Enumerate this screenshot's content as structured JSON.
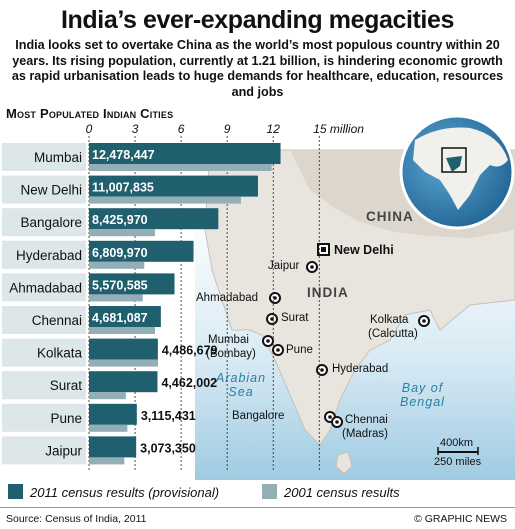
{
  "title": "India’s ever-expanding megacities",
  "subtitle": "India looks set to overtake China as the world’s most populous country within 20 years. Its rising population, currently at 1.21 billion, is hindering economic growth as rapid urbanisation leads to huge demands for healthcare, education, resources and jobs",
  "chart_data": {
    "type": "bar",
    "orientation": "horizontal",
    "title": "Most Populated Indian Cities",
    "xlim": [
      0,
      15
    ],
    "x_ticks": [
      "0",
      "3",
      "6",
      "9",
      "12",
      "15 million"
    ],
    "categories": [
      "Mumbai",
      "New Delhi",
      "Bangalore",
      "Hyderabad",
      "Ahmadabad",
      "Chennai",
      "Kolkata",
      "Surat",
      "Pune",
      "Jaipur"
    ],
    "series": [
      {
        "name": "2011 census results (provisional)",
        "color": "#1f5f6e",
        "values": [
          12.478447,
          11.007835,
          8.42597,
          6.80997,
          5.570585,
          4.681087,
          4.486679,
          4.462002,
          3.115431,
          3.07335
        ],
        "value_labels": [
          "12,478,447",
          "11,007,835",
          "8,425,970",
          "6,809,970",
          "5,570,585",
          "4,681,087",
          "4,486,679",
          "4,462,002",
          "3,115,431",
          "3,073,350"
        ]
      },
      {
        "name": "2001 census results",
        "color": "#93aeb6",
        "values": [
          11.9,
          9.9,
          4.3,
          3.6,
          3.5,
          4.3,
          4.5,
          2.4,
          2.5,
          2.3
        ]
      }
    ],
    "legend_position": "bottom"
  },
  "map": {
    "country_india": "INDIA",
    "country_china": "CHINA",
    "sea_arabian": [
      "Arabian",
      "Sea"
    ],
    "sea_bengal": [
      "Bay of",
      "Bengal"
    ],
    "capital": "New Delhi",
    "cities": [
      "Jaipur",
      "Ahmadabad",
      "Surat",
      "Mumbai",
      "(Bombay)",
      "Pune",
      "Kolkata",
      "(Calcutta)",
      "Hyderabad",
      "Bangalore",
      "Chennai",
      "(Madras)"
    ],
    "scale_km": "400km",
    "scale_miles": "250 miles"
  },
  "legend": {
    "label_2011": "2011 census results (provisional)",
    "label_2001": "2001 census results"
  },
  "footer": {
    "source": "Source: Census of India, 2011",
    "credit": "© GRAPHIC NEWS"
  },
  "colors": {
    "bar_2011": "#1f5f6e",
    "bar_2001": "#93aeb6",
    "land": "#e8e4de",
    "sea": "#3d8fbf",
    "category_box": "#dde6e9"
  }
}
